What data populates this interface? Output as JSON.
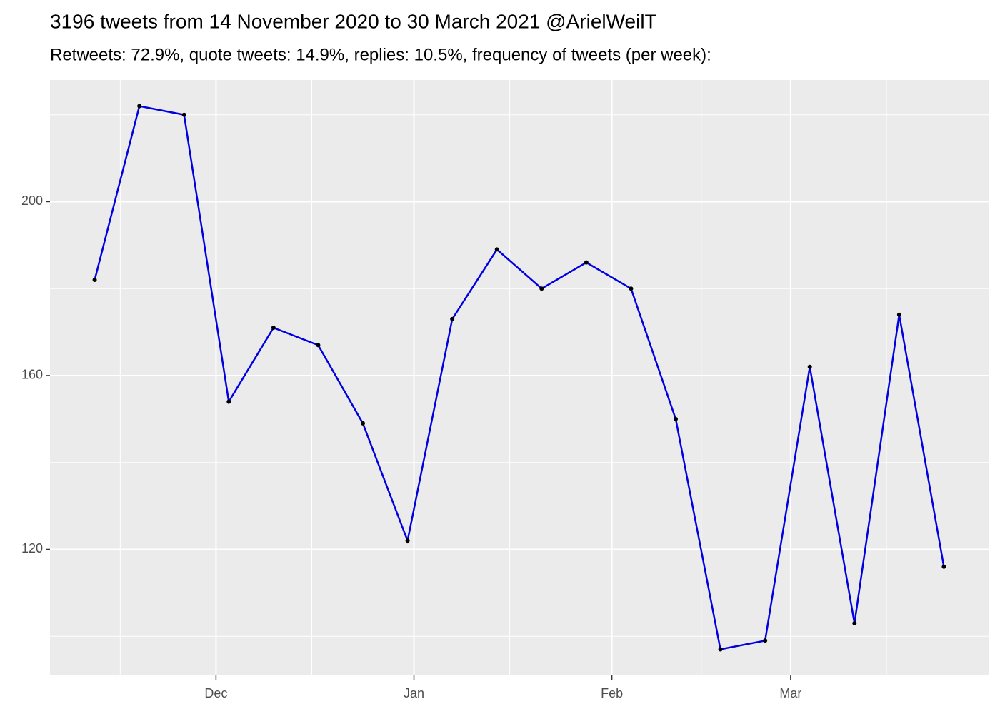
{
  "chart_data": {
    "type": "line",
    "title": "3196 tweets from 14 November 2020 to 30 March 2021 @ArielWeilT",
    "subtitle": "Retweets: 72.9%, quote tweets: 14.9%, replies: 10.5%, frequency of tweets (per week):",
    "x": [
      "2020-11-12",
      "2020-11-19",
      "2020-11-26",
      "2020-12-03",
      "2020-12-10",
      "2020-12-17",
      "2020-12-24",
      "2020-12-31",
      "2021-01-07",
      "2021-01-14",
      "2021-01-21",
      "2021-01-28",
      "2021-02-04",
      "2021-02-11",
      "2021-02-18",
      "2021-02-25",
      "2021-03-04",
      "2021-03-11",
      "2021-03-18",
      "2021-03-25"
    ],
    "series": [
      {
        "color": "#0000e0",
        "point_color": "#000000",
        "values": [
          182,
          222,
          220,
          154,
          171,
          167,
          149,
          122,
          173,
          189,
          180,
          186,
          180,
          150,
          97,
          99,
          162,
          103,
          174,
          116
        ]
      }
    ],
    "xlim": [
      "2020-11-05",
      "2021-04-01"
    ],
    "xticks": [
      {
        "value": "2020-12-01",
        "label": "Dec"
      },
      {
        "value": "2021-01-01",
        "label": "Jan"
      },
      {
        "value": "2021-02-01",
        "label": "Feb"
      },
      {
        "value": "2021-03-01",
        "label": "Mar"
      }
    ],
    "x_minor_ticks": [
      "2020-11-16",
      "2020-12-16",
      "2021-01-16",
      "2021-02-15",
      "2021-03-16"
    ],
    "ylim": [
      91,
      228
    ],
    "yticks": [
      120,
      160,
      200
    ],
    "y_minor_ticks": [
      100,
      140,
      180,
      220
    ],
    "grid": true
  }
}
